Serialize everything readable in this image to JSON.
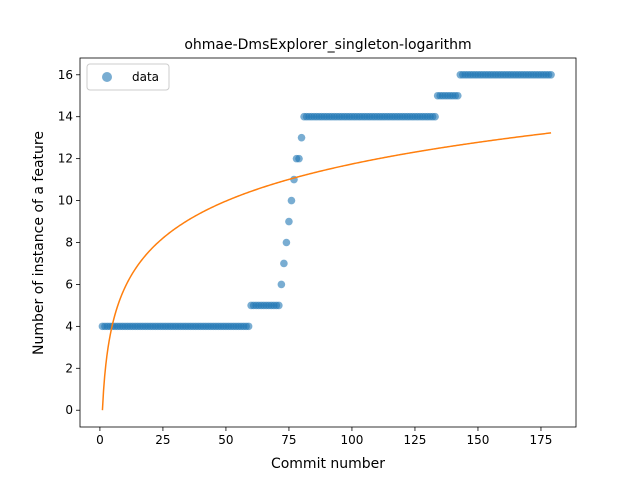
{
  "chart_data": {
    "type": "scatter",
    "title": "ohmae-DmsExplorer_singleton-logarithm",
    "xlabel": "Commit number",
    "ylabel": "Number of instance of a feature",
    "xlim": [
      -7.9,
      188.9
    ],
    "ylim": [
      -0.8,
      16.8
    ],
    "xticks": [
      0,
      25,
      50,
      75,
      100,
      125,
      150,
      175
    ],
    "yticks": [
      0,
      2,
      4,
      6,
      8,
      10,
      12,
      14,
      16
    ],
    "grid": false,
    "legend": {
      "position": "top-left",
      "entries": [
        "data"
      ]
    },
    "colors": {
      "data": "#1f77b4",
      "fit": "#ff7f0e"
    },
    "series": [
      {
        "name": "data",
        "kind": "scatter",
        "segments": [
          {
            "x_from": 1,
            "x_to": 59,
            "y": 4
          },
          {
            "x_from": 60,
            "x_to": 71,
            "y": 5
          },
          {
            "x": 72,
            "y": 6
          },
          {
            "x": 73,
            "y": 7
          },
          {
            "x": 74,
            "y": 8
          },
          {
            "x": 75,
            "y": 9
          },
          {
            "x": 76,
            "y": 10
          },
          {
            "x": 77,
            "y": 11
          },
          {
            "x_from": 78,
            "x_to": 79,
            "y": 12
          },
          {
            "x": 80,
            "y": 13
          },
          {
            "x_from": 81,
            "x_to": 133,
            "y": 14
          },
          {
            "x_from": 134,
            "x_to": 142,
            "y": 15
          },
          {
            "x_from": 143,
            "x_to": 179,
            "y": 16
          }
        ]
      },
      {
        "kind": "line",
        "x_from": 1,
        "x_to": 179,
        "formula": "y = 2.55 * ln(x)"
      }
    ]
  }
}
